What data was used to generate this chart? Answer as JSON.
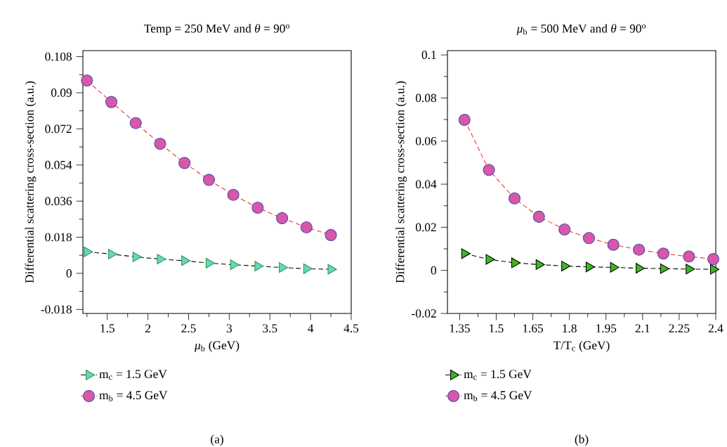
{
  "chart_data": [
    {
      "type": "line",
      "title": "Temp = 250 MeV and *θ* = 90$^{o}$",
      "xlabel": "*μ*$_{b}$ (GeV)",
      "ylabel": "Differential scattering cross-section (a.u.)",
      "x": [
        1.25,
        1.55,
        1.85,
        2.15,
        2.45,
        2.75,
        3.05,
        3.35,
        3.65,
        3.95,
        4.25
      ],
      "series": [
        {
          "name": "m$_{c}$ = 1.5 GeV",
          "color": "#66d4c8",
          "marker": "triangle",
          "values": [
            0.0107,
            0.0096,
            0.0082,
            0.0071,
            0.0063,
            0.0051,
            0.0043,
            0.0036,
            0.0029,
            0.0023,
            0.002
          ]
        },
        {
          "name": "m$_{b}$ = 4.5 GeV",
          "color": "#d957a8",
          "marker": "circle",
          "values": [
            0.0961,
            0.0854,
            0.0749,
            0.0646,
            0.055,
            0.0466,
            0.0391,
            0.0327,
            0.0275,
            0.0229,
            0.0191
          ]
        }
      ],
      "xlim": [
        1.2,
        4.5
      ],
      "ylim": [
        -0.02,
        0.111
      ],
      "xticks": [
        {
          "value": 1.25,
          "label": null
        },
        1.5,
        {
          "value": 1.75,
          "label": null
        },
        2,
        {
          "value": 2.25,
          "label": null
        },
        2.5,
        {
          "value": 2.75,
          "label": null
        },
        3,
        {
          "value": 3.25,
          "label": null
        },
        3.5,
        {
          "value": 3.75,
          "label": null
        },
        4,
        {
          "value": 4.25,
          "label": null
        },
        4.5
      ],
      "yticks": [
        -0.018,
        {
          "value": -0.009,
          "label": null
        },
        0,
        {
          "value": 0.009,
          "label": null
        },
        0.018,
        {
          "value": 0.027,
          "label": null
        },
        0.036,
        {
          "value": 0.045,
          "label": null
        },
        0.054,
        {
          "value": 0.063,
          "label": null
        },
        0.072,
        {
          "value": 0.081,
          "label": null
        },
        0.09,
        {
          "value": 0.099,
          "label": null
        },
        0.108
      ],
      "legend": "bottom",
      "line_style": "dashed",
      "grid": false,
      "annotations": [
        "(a)"
      ]
    },
    {
      "type": "line",
      "title": "*μ*$_{b}$ = 500 MeV and *θ* = 90$^{o}$",
      "xlabel": "T/T$_{c}$ (GeV)",
      "ylabel": "Differential scattering cross-section (a.u.)",
      "x": [
        1.37,
        1.47,
        1.575,
        1.675,
        1.78,
        1.88,
        1.98,
        2.085,
        2.185,
        2.29,
        2.39
      ],
      "series": [
        {
          "name": "m$_{c}$ = 1.5 GeV",
          "color": "#3cb820",
          "marker": "triangle",
          "values": [
            0.0078,
            0.0051,
            0.0035,
            0.0027,
            0.002,
            0.0016,
            0.0014,
            0.001,
            0.0008,
            0.0006,
            0.0005
          ]
        },
        {
          "name": "m$_{b}$ = 4.5 GeV",
          "color": "#d957a8",
          "marker": "circle",
          "values": [
            0.0699,
            0.0466,
            0.0334,
            0.0249,
            0.019,
            0.015,
            0.0119,
            0.0096,
            0.0078,
            0.0064,
            0.0053
          ]
        }
      ],
      "xlim": [
        1.3,
        2.4
      ],
      "ylim": [
        -0.02,
        0.102
      ],
      "xticks": [
        1.35,
        {
          "value": 1.425,
          "label": null
        },
        1.5,
        {
          "value": 1.575,
          "label": null
        },
        1.65,
        {
          "value": 1.725,
          "label": null
        },
        1.8,
        {
          "value": 1.875,
          "label": null
        },
        1.95,
        {
          "value": 2.025,
          "label": null
        },
        2.1,
        {
          "value": 2.175,
          "label": null
        },
        2.25,
        {
          "value": 2.325,
          "label": null
        },
        2.4
      ],
      "yticks": [
        -0.02,
        {
          "value": -0.01,
          "label": null
        },
        0,
        {
          "value": 0.01,
          "label": null
        },
        0.02,
        {
          "value": 0.03,
          "label": null
        },
        0.04,
        {
          "value": 0.05,
          "label": null
        },
        0.06,
        {
          "value": 0.07,
          "label": null
        },
        0.08,
        {
          "value": 0.09,
          "label": null
        },
        0.1
      ],
      "legend": "bottom",
      "line_style": "dashed",
      "grid": false,
      "annotations": [
        "(b)"
      ]
    }
  ]
}
